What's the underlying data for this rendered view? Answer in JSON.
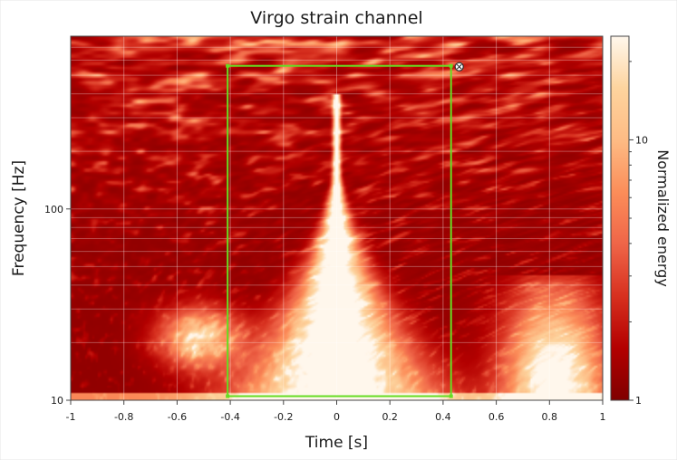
{
  "chart_data": {
    "type": "heatmap",
    "title": "Virgo strain channel",
    "xlabel": "Time [s]",
    "ylabel": "Frequency [Hz]",
    "xlim": [
      -1,
      1
    ],
    "ylim": [
      10,
      800
    ],
    "yscale": "log",
    "xticks": [
      -1,
      -0.8,
      -0.6,
      -0.4,
      -0.2,
      0,
      0.2,
      0.4,
      0.6,
      0.8,
      1
    ],
    "xtick_labels": [
      "-1",
      "-0.8",
      "-0.6",
      "-0.4",
      "-0.2",
      "0",
      "0.2",
      "0.4",
      "0.6",
      "0.8",
      "1"
    ],
    "yticks": [
      10,
      100
    ],
    "ytick_labels": [
      "10",
      "100"
    ],
    "grid": true,
    "colorbar": {
      "label": "Normalized energy",
      "scale": "log",
      "range": [
        1,
        25
      ],
      "ticks": [
        1,
        10
      ],
      "tick_labels": [
        "1",
        "10"
      ],
      "colormap": [
        "#7f0000",
        "#b30000",
        "#d7301f",
        "#ef6548",
        "#fc8d59",
        "#fdbb84",
        "#fdd49e",
        "#fff7ec"
      ]
    },
    "selection_box": {
      "x": [
        -0.41,
        0.43
      ],
      "y": [
        10.5,
        560
      ],
      "color": "#66dd22"
    },
    "features": [
      {
        "type": "chirp",
        "t": [
          -0.45,
          0.45
        ],
        "f": [
          10,
          400
        ],
        "peak_time": 0.0,
        "peak_freq": 400
      },
      {
        "type": "blob",
        "t": [
          0.6,
          1.0
        ],
        "f": [
          10,
          45
        ]
      },
      {
        "type": "blob",
        "t": [
          -0.65,
          -0.35
        ],
        "f": [
          18,
          35
        ]
      }
    ]
  }
}
